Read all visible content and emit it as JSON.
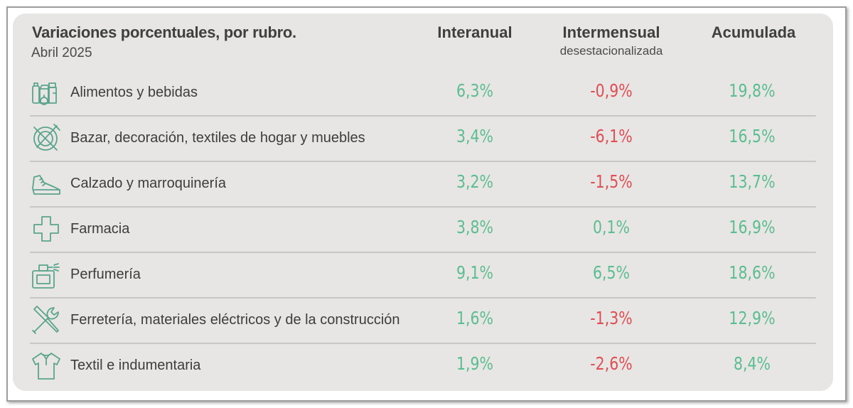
{
  "header": {
    "title": "Variaciones porcentuales, por rubro.",
    "subtitle": "Abril 2025",
    "col_interanual": "Interanual",
    "col_intermensual": "Intermensual",
    "col_intermensual_sub": "desestacionalizada",
    "col_acumulada": "Acumulada"
  },
  "colors": {
    "positive": "#5cbd90",
    "negative": "#de4f55",
    "icon": "#5aa48d",
    "panel": "#e8e6e4"
  },
  "chart_data": {
    "type": "table",
    "title": "Variaciones porcentuales, por rubro.",
    "subtitle": "Abril 2025",
    "columns": [
      "Interanual",
      "Intermensual desestacionalizada",
      "Acumulada"
    ],
    "rows": [
      {
        "icon": "grocery-icon",
        "label": "Alimentos y bebidas",
        "interanual": "6,3%",
        "intermensual": "-0,9%",
        "acumulada": "19,8%"
      },
      {
        "icon": "plate-cutlery-icon",
        "label": "Bazar, decoración, textiles de hogar y muebles",
        "interanual": "3,4%",
        "intermensual": "-6,1%",
        "acumulada": "16,5%"
      },
      {
        "icon": "sneaker-icon",
        "label": "Calzado y marroquinería",
        "interanual": "3,2%",
        "intermensual": "-1,5%",
        "acumulada": "13,7%"
      },
      {
        "icon": "pharmacy-cross-icon",
        "label": "Farmacia",
        "interanual": "3,8%",
        "intermensual": "0,1%",
        "acumulada": "16,9%"
      },
      {
        "icon": "perfume-bottle-icon",
        "label": "Perfumería",
        "interanual": "9,1%",
        "intermensual": "6,5%",
        "acumulada": "18,6%"
      },
      {
        "icon": "tools-icon",
        "label": "Ferretería, materiales eléctricos y de la construcción",
        "interanual": "1,6%",
        "intermensual": "-1,3%",
        "acumulada": "12,9%"
      },
      {
        "icon": "shirt-icon",
        "label": "Textil e indumentaria",
        "interanual": "1,9%",
        "intermensual": "-2,6%",
        "acumulada": "8,4%"
      }
    ],
    "values_numeric": {
      "interanual": [
        6.3,
        3.4,
        3.2,
        3.8,
        9.1,
        1.6,
        1.9
      ],
      "intermensual": [
        -0.9,
        -6.1,
        -1.5,
        0.1,
        6.5,
        -1.3,
        -2.6
      ],
      "acumulada": [
        19.8,
        16.5,
        13.7,
        16.9,
        18.6,
        12.9,
        8.4
      ]
    }
  }
}
